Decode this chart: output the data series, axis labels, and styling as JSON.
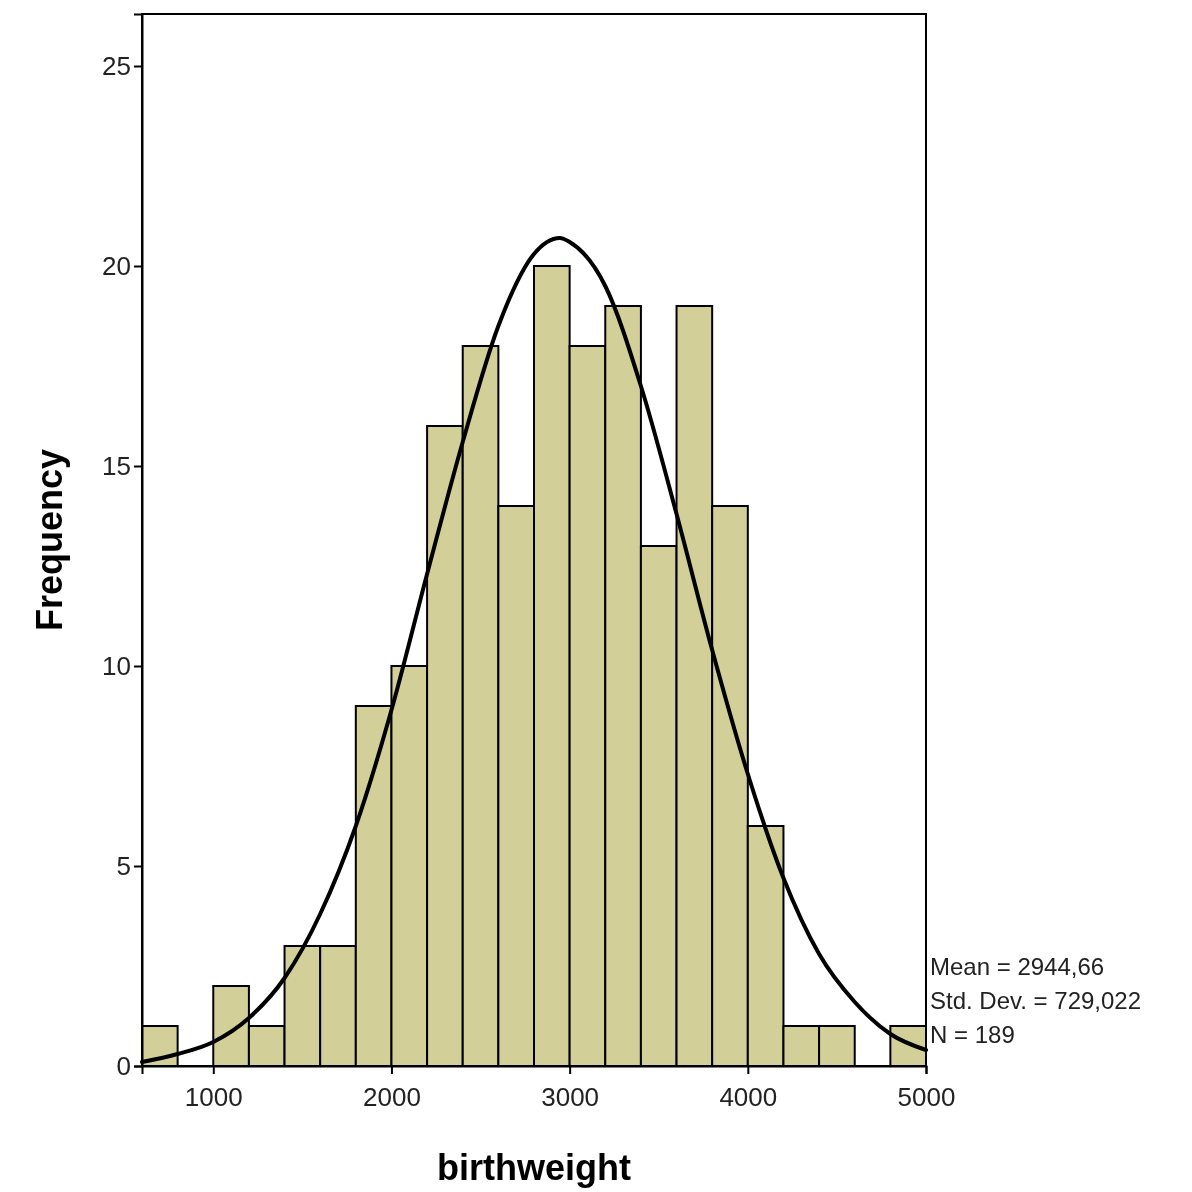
{
  "chart_data": {
    "type": "histogram",
    "xlabel": "birthweight",
    "ylabel": "Frequency",
    "bins": [
      600,
      800,
      1000,
      1200,
      1400,
      1600,
      1800,
      2000,
      2200,
      2400,
      2600,
      2800,
      3000,
      3200,
      3400,
      3600,
      3800,
      4000,
      4200,
      4400,
      4600,
      4800,
      5000
    ],
    "values": [
      1,
      0,
      2,
      1,
      3,
      3,
      9,
      10,
      16,
      18,
      14,
      20,
      18,
      19,
      13,
      19,
      14,
      6,
      1,
      1,
      0,
      1
    ],
    "color": "#d3cf98",
    "series": [
      {
        "type": "line",
        "color": "#000000",
        "x": [
          600,
          800,
          1000,
          1200,
          1400,
          1600,
          1800,
          2000,
          2200,
          2400,
          2600,
          2800,
          2945,
          3000,
          3200,
          3400,
          3600,
          3800,
          4000,
          4200,
          4400,
          4600,
          4800,
          5000
        ],
        "values": [
          0.1,
          0.3,
          0.6,
          1.2,
          2.2,
          3.8,
          6.0,
          8.9,
          12.3,
          15.6,
          18.5,
          20.3,
          20.7,
          20.6,
          19.5,
          17.0,
          13.8,
          10.4,
          7.3,
          4.7,
          2.8,
          1.6,
          0.8,
          0.4
        ]
      }
    ],
    "xlim": [
      600,
      5000
    ],
    "ylim": [
      0,
      26.3
    ],
    "xticks": [
      1000,
      2000,
      3000,
      4000,
      5000
    ],
    "yticks": [
      0,
      5,
      10,
      15,
      20,
      25
    ],
    "grid": false,
    "annotations": [
      "Mean = 2944,66",
      "Std. Dev. = 729,022",
      "N = 189"
    ]
  }
}
